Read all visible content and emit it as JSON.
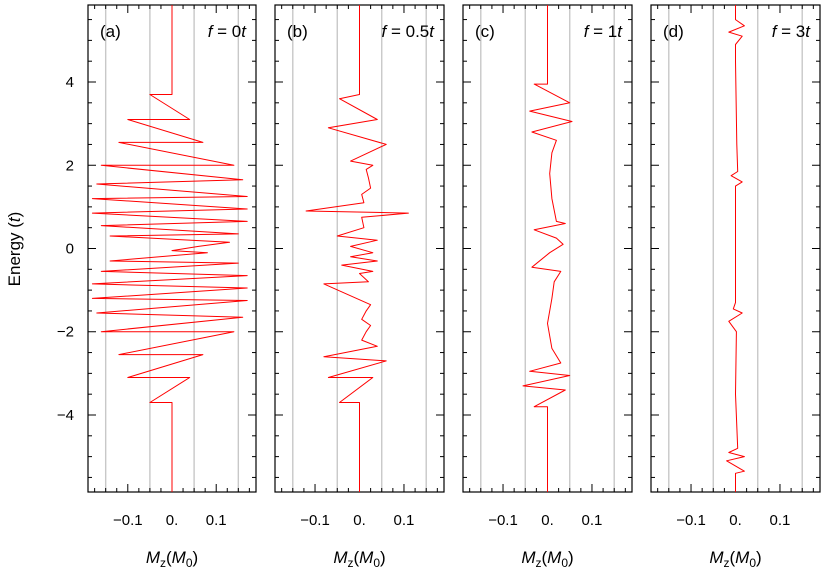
{
  "chart_data": {
    "type": "line",
    "ylabel": "Energy (t)",
    "xlabel": "Mz(M0)",
    "ylim": [
      -5.85,
      5.85
    ],
    "xlim": [
      -0.19,
      0.19
    ],
    "yticks": [
      -4,
      -2,
      0,
      2,
      4
    ],
    "ytick_labels": [
      "−4",
      "−2",
      "0",
      "2",
      "4"
    ],
    "xticks": [
      -0.1,
      0,
      0.1
    ],
    "xtick_labels": [
      "−0.1",
      "0.",
      "0.1"
    ],
    "vgrid": [
      -0.15,
      -0.05,
      0.05,
      0.15
    ],
    "line_color": "#ff0000",
    "grid_color": "#c8c8c8",
    "panels": [
      {
        "tag": "(a)",
        "field": "f = 0t",
        "points": [
          [
            0,
            -5.85
          ],
          [
            0,
            -3.7
          ],
          [
            -0.05,
            -3.7
          ],
          [
            0.04,
            -3.1
          ],
          [
            -0.1,
            -3.1
          ],
          [
            0.07,
            -2.55
          ],
          [
            -0.12,
            -2.55
          ],
          [
            0.14,
            -2.0
          ],
          [
            -0.16,
            -2.0
          ],
          [
            0.16,
            -1.65
          ],
          [
            -0.17,
            -1.55
          ],
          [
            0.17,
            -1.25
          ],
          [
            -0.18,
            -1.2
          ],
          [
            0.17,
            -0.95
          ],
          [
            -0.18,
            -0.85
          ],
          [
            0.17,
            -0.65
          ],
          [
            -0.16,
            -0.55
          ],
          [
            0.15,
            -0.35
          ],
          [
            -0.14,
            -0.3
          ],
          [
            0.08,
            -0.1
          ],
          [
            0,
            -0.05
          ],
          [
            0.06,
            0.05
          ],
          [
            0.13,
            0.15
          ],
          [
            -0.14,
            0.3
          ],
          [
            0.15,
            0.35
          ],
          [
            -0.16,
            0.55
          ],
          [
            0.17,
            0.65
          ],
          [
            -0.18,
            0.85
          ],
          [
            0.17,
            0.95
          ],
          [
            -0.18,
            1.2
          ],
          [
            0.17,
            1.25
          ],
          [
            -0.17,
            1.55
          ],
          [
            0.16,
            1.65
          ],
          [
            -0.16,
            2.0
          ],
          [
            0.14,
            2.0
          ],
          [
            -0.12,
            2.55
          ],
          [
            0.07,
            2.55
          ],
          [
            -0.1,
            3.1
          ],
          [
            0.04,
            3.1
          ],
          [
            -0.05,
            3.7
          ],
          [
            0,
            3.7
          ],
          [
            0,
            5.85
          ]
        ]
      },
      {
        "tag": "(b)",
        "field": "f = 0.5t",
        "points": [
          [
            0,
            -5.85
          ],
          [
            0,
            -3.7
          ],
          [
            -0.045,
            -3.7
          ],
          [
            0.03,
            -3.1
          ],
          [
            -0.07,
            -3.1
          ],
          [
            0.06,
            -2.7
          ],
          [
            -0.08,
            -2.6
          ],
          [
            0.04,
            -2.35
          ],
          [
            0.005,
            -2.2
          ],
          [
            0.015,
            -2.0
          ],
          [
            0.025,
            -1.85
          ],
          [
            0.005,
            -1.7
          ],
          [
            0.015,
            -1.5
          ],
          [
            0.025,
            -1.35
          ],
          [
            -0.08,
            -0.85
          ],
          [
            0.02,
            -0.8
          ],
          [
            0,
            -0.6
          ],
          [
            0.03,
            -0.55
          ],
          [
            -0.04,
            -0.4
          ],
          [
            0.04,
            -0.3
          ],
          [
            -0.02,
            -0.2
          ],
          [
            0.03,
            -0.1
          ],
          [
            -0.02,
            0.05
          ],
          [
            0.04,
            0.2
          ],
          [
            -0.05,
            0.3
          ],
          [
            0.01,
            0.5
          ],
          [
            0.005,
            0.75
          ],
          [
            0.11,
            0.85
          ],
          [
            -0.12,
            0.9
          ],
          [
            0.01,
            1.1
          ],
          [
            0.005,
            1.3
          ],
          [
            0.025,
            1.45
          ],
          [
            0.02,
            1.7
          ],
          [
            0.015,
            1.9
          ],
          [
            0.03,
            2.0
          ],
          [
            -0.02,
            2.1
          ],
          [
            0.01,
            2.25
          ],
          [
            0.06,
            2.5
          ],
          [
            -0.07,
            2.9
          ],
          [
            0.04,
            3.1
          ],
          [
            -0.045,
            3.6
          ],
          [
            0,
            3.7
          ],
          [
            0,
            5.85
          ]
        ]
      },
      {
        "tag": "(c)",
        "field": "f = 1t",
        "points": [
          [
            0,
            -5.85
          ],
          [
            0,
            -3.8
          ],
          [
            -0.03,
            -3.8
          ],
          [
            0.04,
            -3.4
          ],
          [
            -0.055,
            -3.3
          ],
          [
            0.05,
            -3.05
          ],
          [
            -0.04,
            -2.95
          ],
          [
            0.03,
            -2.75
          ],
          [
            0.01,
            -2.4
          ],
          [
            0.0,
            -1.8
          ],
          [
            0.01,
            -1.2
          ],
          [
            0.015,
            -0.8
          ],
          [
            0.03,
            -0.55
          ],
          [
            -0.035,
            -0.45
          ],
          [
            0.005,
            -0.1
          ],
          [
            0.035,
            0.1
          ],
          [
            0.02,
            0.25
          ],
          [
            -0.03,
            0.45
          ],
          [
            0.04,
            0.6
          ],
          [
            0.02,
            0.65
          ],
          [
            0.01,
            1.2
          ],
          [
            0.005,
            1.8
          ],
          [
            0.01,
            2.3
          ],
          [
            0.02,
            2.6
          ],
          [
            -0.035,
            2.8
          ],
          [
            0.055,
            3.05
          ],
          [
            -0.04,
            3.3
          ],
          [
            0.05,
            3.5
          ],
          [
            -0.03,
            3.95
          ],
          [
            0,
            3.95
          ],
          [
            0,
            5.85
          ]
        ]
      },
      {
        "tag": "(d)",
        "field": "f = 3t",
        "points": [
          [
            0,
            -5.85
          ],
          [
            0,
            -5.4
          ],
          [
            0.02,
            -5.35
          ],
          [
            -0.02,
            -5.1
          ],
          [
            0.02,
            -5.0
          ],
          [
            -0.015,
            -4.9
          ],
          [
            0.005,
            -4.8
          ],
          [
            0.0,
            -3.5
          ],
          [
            0.002,
            -2.0
          ],
          [
            -0.015,
            -1.75
          ],
          [
            0.015,
            -1.55
          ],
          [
            -0.005,
            -1.45
          ],
          [
            0.0,
            -1.3
          ],
          [
            0.0,
            1.5
          ],
          [
            0.015,
            1.6
          ],
          [
            -0.01,
            1.75
          ],
          [
            0.005,
            1.85
          ],
          [
            0.003,
            2.5
          ],
          [
            0.0,
            4.5
          ],
          [
            0.0,
            4.9
          ],
          [
            0.015,
            5.1
          ],
          [
            -0.015,
            5.2
          ],
          [
            0.02,
            5.35
          ],
          [
            0.0,
            5.5
          ],
          [
            0,
            5.85
          ]
        ]
      }
    ]
  }
}
